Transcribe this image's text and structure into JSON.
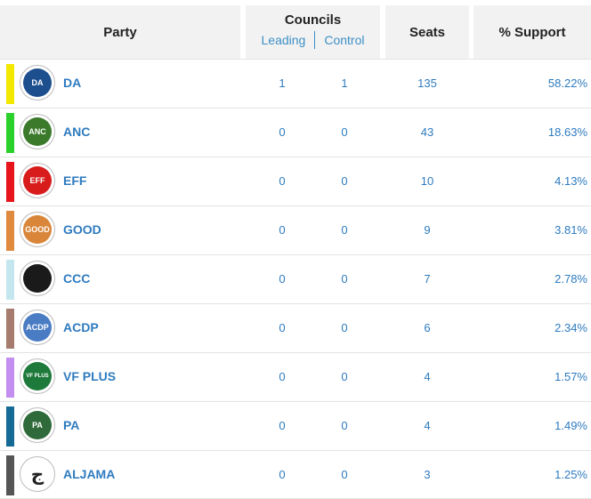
{
  "header": {
    "party": "Party",
    "councils": "Councils",
    "leading": "Leading",
    "control": "Control",
    "seats": "Seats",
    "support": "% Support"
  },
  "rows": [
    {
      "name": "DA",
      "color": "#f4e800",
      "leading": "1",
      "control": "1",
      "seats": "135",
      "support": "58.22%",
      "logo_text": "DA",
      "logo_bg": "#1d4f8f"
    },
    {
      "name": "ANC",
      "color": "#2bd12b",
      "leading": "0",
      "control": "0",
      "seats": "43",
      "support": "18.63%",
      "logo_text": "ANC",
      "logo_bg": "#3a7a2a"
    },
    {
      "name": "EFF",
      "color": "#e8141b",
      "leading": "0",
      "control": "0",
      "seats": "10",
      "support": "4.13%",
      "logo_text": "EFF",
      "logo_bg": "#d81c1c"
    },
    {
      "name": "GOOD",
      "color": "#df8a3f",
      "leading": "0",
      "control": "0",
      "seats": "9",
      "support": "3.81%",
      "logo_text": "GOOD",
      "logo_bg": "#d9863a"
    },
    {
      "name": "CCC",
      "color": "#c4e6ef",
      "leading": "0",
      "control": "0",
      "seats": "7",
      "support": "2.78%",
      "logo_text": "",
      "logo_bg": "#1a1a1a"
    },
    {
      "name": "ACDP",
      "color": "#a67c6e",
      "leading": "0",
      "control": "0",
      "seats": "6",
      "support": "2.34%",
      "logo_text": "ACDP",
      "logo_bg": "#4a7cc4"
    },
    {
      "name": "VF PLUS",
      "color": "#c48ef0",
      "leading": "0",
      "control": "0",
      "seats": "4",
      "support": "1.57%",
      "logo_text": "VF PLUS",
      "logo_bg": "#1e7a3a"
    },
    {
      "name": "PA",
      "color": "#156a96",
      "leading": "0",
      "control": "0",
      "seats": "4",
      "support": "1.49%",
      "logo_text": "PA",
      "logo_bg": "#2f6b3a"
    },
    {
      "name": "ALJAMA",
      "color": "#555555",
      "leading": "0",
      "control": "0",
      "seats": "3",
      "support": "1.25%",
      "logo_text": "ج",
      "logo_bg": "#ffffff"
    }
  ]
}
